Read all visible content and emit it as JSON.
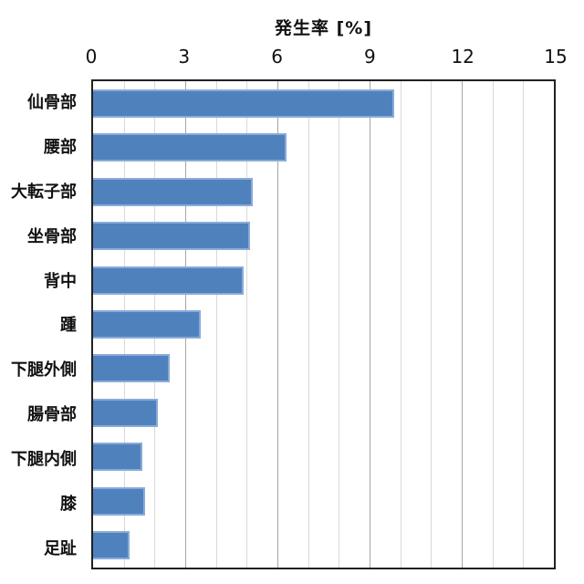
{
  "chart_data": {
    "type": "bar",
    "orientation": "horizontal",
    "title": "発生率 [%]",
    "xlabel": "発生率 [%]",
    "categories": [
      "仙骨部",
      "腰部",
      "大転子部",
      "坐骨部",
      "背中",
      "踵",
      "下腿外側",
      "腸骨部",
      "下腿内側",
      "膝",
      "足趾"
    ],
    "values": [
      9.8,
      6.3,
      5.2,
      5.1,
      4.9,
      3.5,
      2.5,
      2.1,
      1.6,
      1.7,
      1.2
    ],
    "xlim": [
      0,
      15
    ],
    "x_ticks": [
      0,
      3,
      6,
      9,
      12,
      15
    ],
    "minor_grid_step": 1,
    "major_grid_step": 3,
    "axis_position": "top",
    "grid": true,
    "legend": false,
    "colors": {
      "bar_fill": "#4f81bd",
      "bar_border": "#8aabd8",
      "grid_minor": "#d9d9d9",
      "grid_major": "#a6a6a6",
      "frame": "#212121",
      "text": "#111111"
    }
  }
}
